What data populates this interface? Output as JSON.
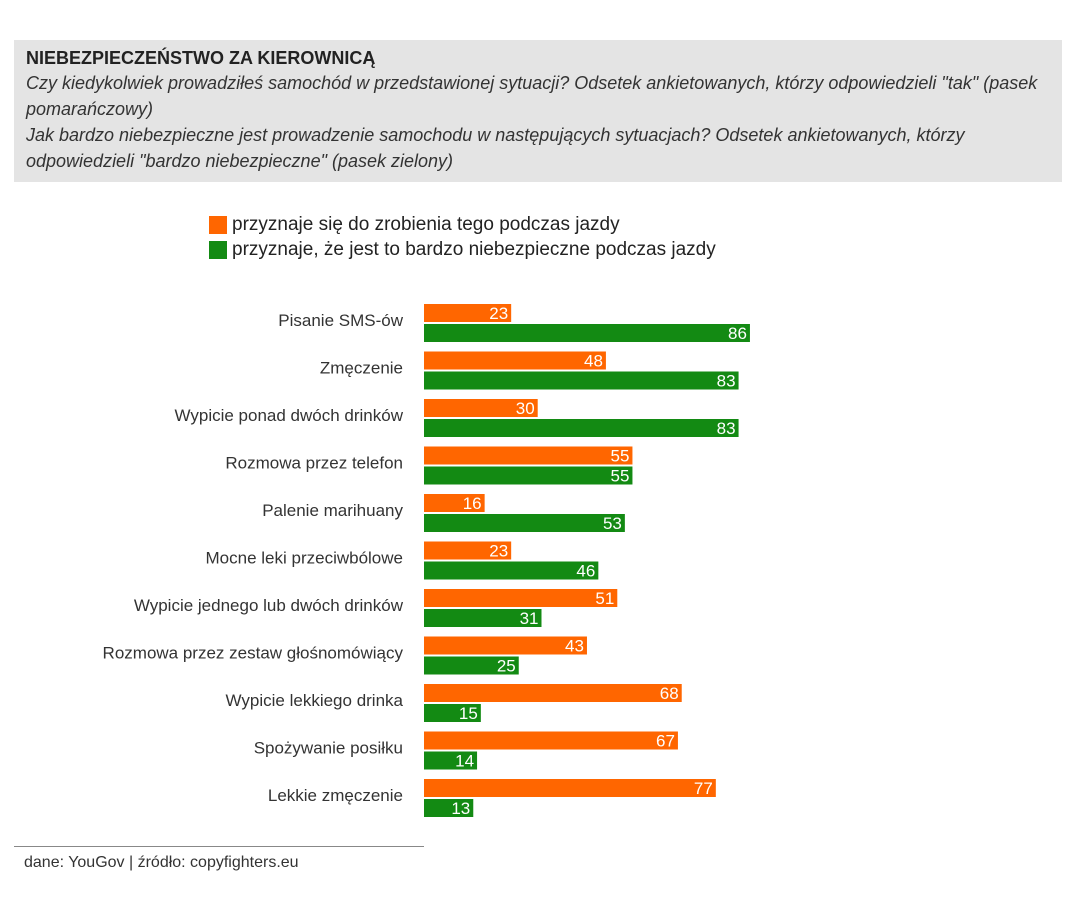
{
  "header": {
    "title": "NIEBEZPIECZEŃSTWO ZA KIEROWNICĄ",
    "question1": "Czy kiedykolwiek prowadziłeś samochód w przedstawionej sytuacji? Odsetek ankietowanych, którzy odpowiedzieli \"tak\" (pasek pomarańczowy)",
    "question2": "Jak bardzo niebezpieczne jest prowadzenie samochodu w następujących sytuacjach? Odsetek ankietowanych, którzy odpowiedzieli \"bardzo niebezpieczne\" (pasek zielony)"
  },
  "colors": {
    "orange": "#ff6600",
    "green": "#138a13"
  },
  "chart_data": {
    "type": "bar",
    "orientation": "horizontal",
    "title": "NIEBEZPIECZEŃSTWO ZA KIEROWNICĄ",
    "categories": [
      "Pisanie SMS-ów",
      "Zmęczenie",
      "Wypicie ponad dwóch drinków",
      "Rozmowa przez telefon",
      "Palenie marihuany",
      "Mocne leki przeciwbólowe",
      "Wypicie jednego lub dwóch drinków",
      "Rozmowa przez zestaw głośnomówiący",
      "Wypicie lekkiego drinka",
      "Spożywanie posiłku",
      "Lekkie zmęczenie"
    ],
    "series": [
      {
        "name": "przyznaje się do zrobienia tego podczas jazdy",
        "color": "#ff6600",
        "values": [
          23,
          48,
          30,
          55,
          16,
          23,
          51,
          43,
          68,
          67,
          77
        ]
      },
      {
        "name": "przyznaje, że jest to bardzo niebezpieczne podczas jazdy",
        "color": "#138a13",
        "values": [
          86,
          83,
          83,
          55,
          53,
          46,
          31,
          25,
          15,
          14,
          13
        ]
      }
    ],
    "xlim": [
      0,
      100
    ],
    "grid": false,
    "legend": "top"
  },
  "footer": {
    "source": "dane: YouGov | źródło: copyfighters.eu"
  }
}
